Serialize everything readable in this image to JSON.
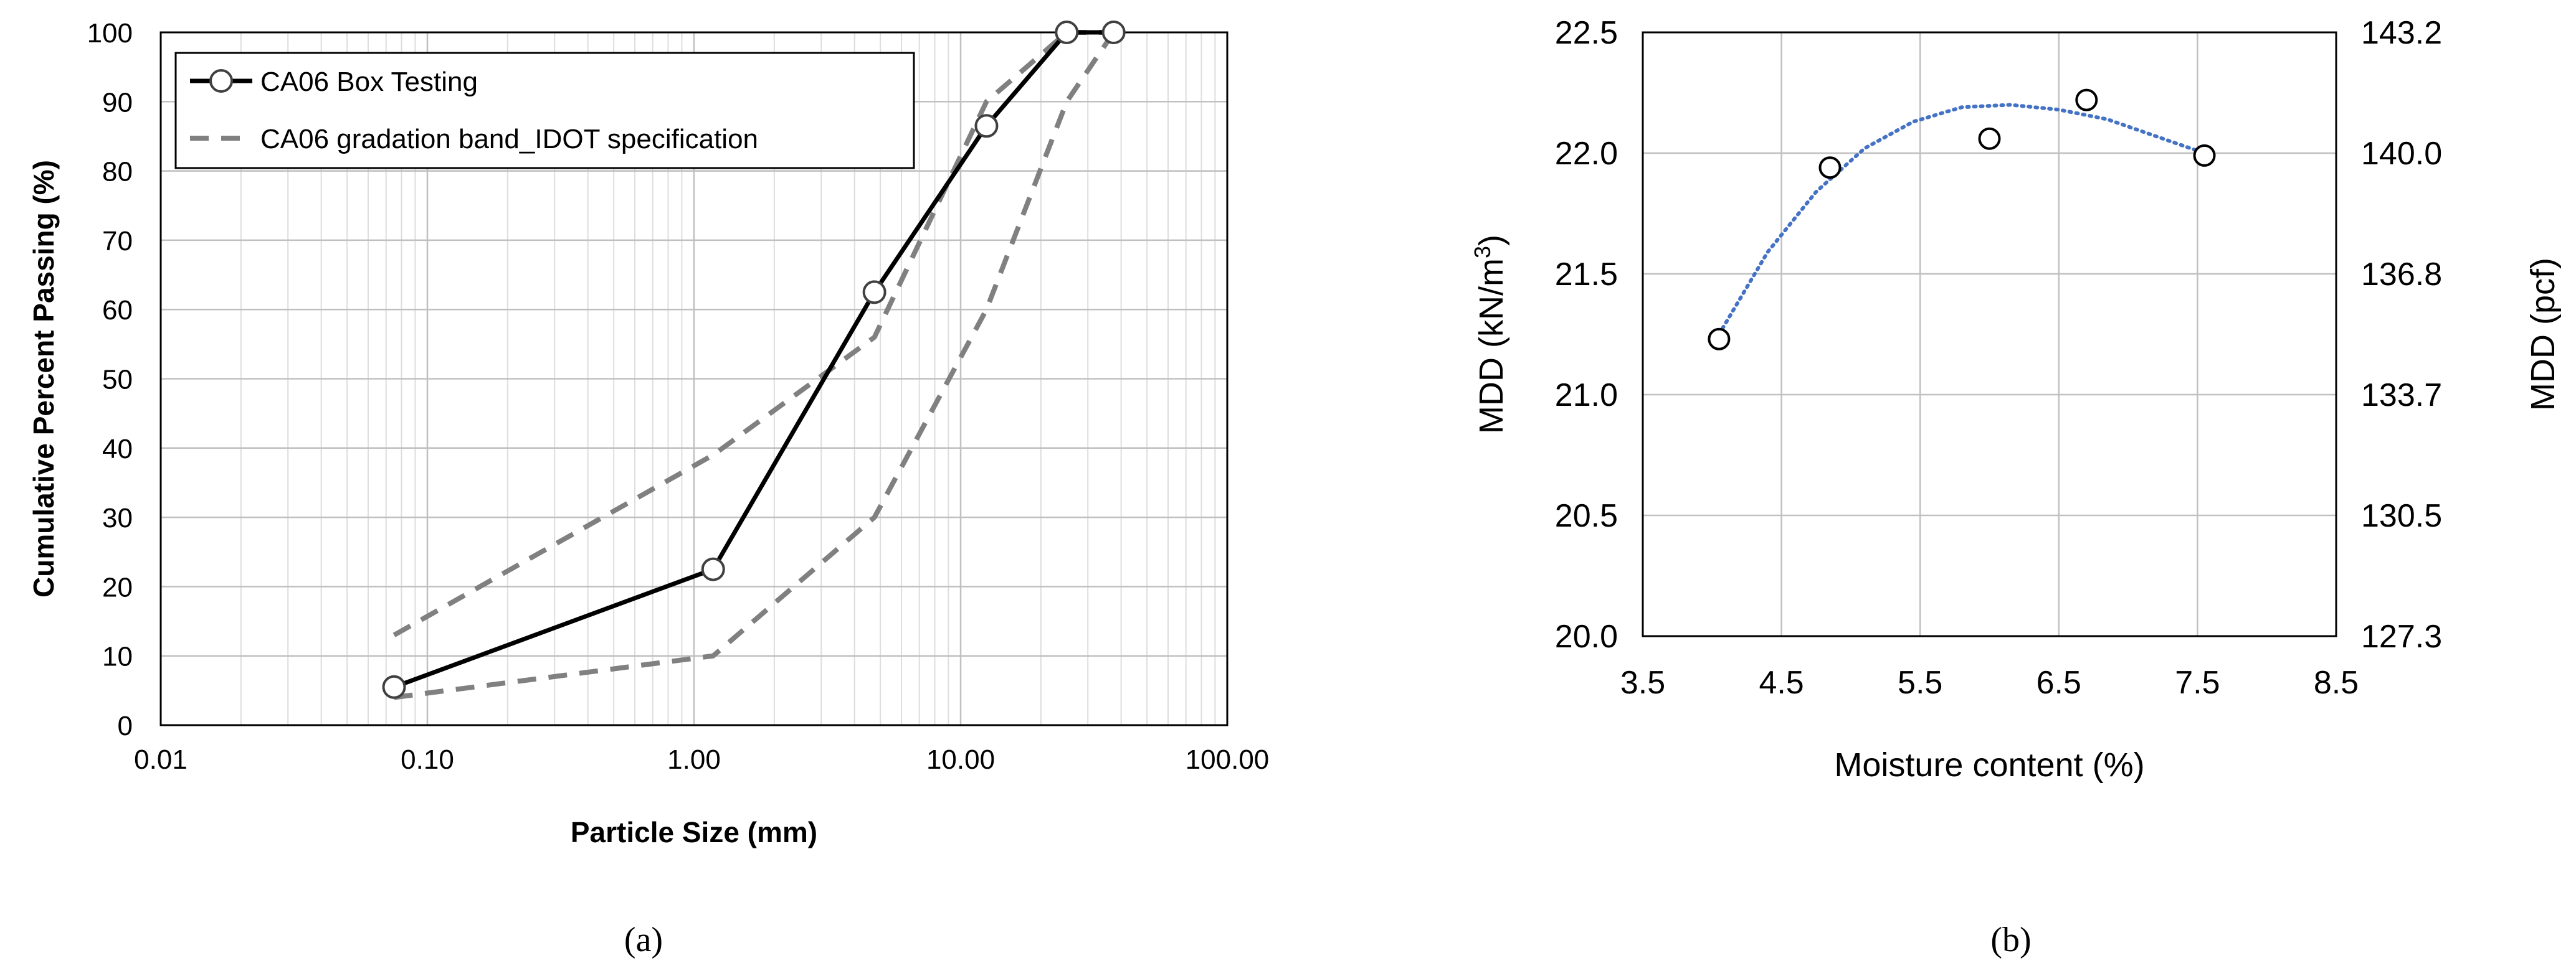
{
  "captions": {
    "a": "(a)",
    "b": "(b)"
  },
  "colors": {
    "box_testing": "#000000",
    "idot_band": "#808080",
    "fit_line": "#4472C4",
    "grid_major": "#C0C0C0",
    "grid_minor": "#DDDDDD",
    "axis": "#000000",
    "marker_fill": "#ffffff"
  },
  "chart_data": [
    {
      "id": "a",
      "type": "line",
      "xscale": "log",
      "xlabel": "Particle Size (mm)",
      "ylabel": "Cumulative Percent Passing (%)",
      "xlim": [
        0.01,
        100
      ],
      "ylim": [
        0,
        100
      ],
      "x_ticks": [
        {
          "value": 0.01,
          "label": "0.01"
        },
        {
          "value": 0.1,
          "label": "0.10"
        },
        {
          "value": 1,
          "label": "1.00"
        },
        {
          "value": 10,
          "label": "10.00"
        },
        {
          "value": 100,
          "label": "100.00"
        }
      ],
      "y_ticks": [
        0,
        10,
        20,
        30,
        40,
        50,
        60,
        70,
        80,
        90,
        100
      ],
      "grid": {
        "major": true,
        "minor_x": true
      },
      "legend_position": "top-left",
      "series": [
        {
          "name": "CA06 Box Testing",
          "style": "solid-markers",
          "x": [
            0.075,
            1.18,
            4.75,
            12.5,
            25,
            37.5
          ],
          "y": [
            5.5,
            22.5,
            62.5,
            86.5,
            100,
            100
          ]
        },
        {
          "name": "CA06 gradation band_IDOT specification",
          "style": "dashed",
          "lines": [
            {
              "x": [
                0.075,
                1.18,
                4.75,
                12.5,
                25,
                37.5
              ],
              "y": [
                13,
                39,
                56,
                90,
                100,
                100
              ]
            },
            {
              "x": [
                0.075,
                1.18,
                4.75,
                12.5,
                25,
                37.5
              ],
              "y": [
                4,
                10,
                30,
                60,
                90,
                100
              ]
            }
          ]
        }
      ]
    },
    {
      "id": "b",
      "type": "scatter",
      "xlabel": "Moisture content (%)",
      "ylabel_left_base": "MDD (kN/m",
      "ylabel_left_sup": "3",
      "ylabel_left_end": ")",
      "ylabel_right": "MDD (pcf)",
      "xlim": [
        3.5,
        8.5
      ],
      "ylim": [
        20.0,
        22.5
      ],
      "x_ticks": [
        "3.5",
        "4.5",
        "5.5",
        "6.5",
        "7.5",
        "8.5"
      ],
      "y_ticks": [
        "20.0",
        "20.5",
        "21.0",
        "21.5",
        "22.0",
        "22.5"
      ],
      "y_right_ticks": [
        "127.3",
        "130.5",
        "133.7",
        "136.8",
        "140.0",
        "143.2"
      ],
      "grid": {
        "major": true
      },
      "points": {
        "x": [
          4.05,
          4.85,
          6.0,
          6.7,
          7.55
        ],
        "y": [
          21.23,
          21.94,
          22.06,
          22.22,
          21.99
        ]
      },
      "trendline": {
        "style": "dotted",
        "x": [
          4.05,
          4.4,
          4.75,
          5.1,
          5.45,
          5.8,
          6.15,
          6.5,
          6.85,
          7.2,
          7.55
        ],
        "y": [
          21.25,
          21.59,
          21.84,
          22.02,
          22.13,
          22.19,
          22.2,
          22.18,
          22.14,
          22.07,
          22.0
        ]
      }
    }
  ]
}
